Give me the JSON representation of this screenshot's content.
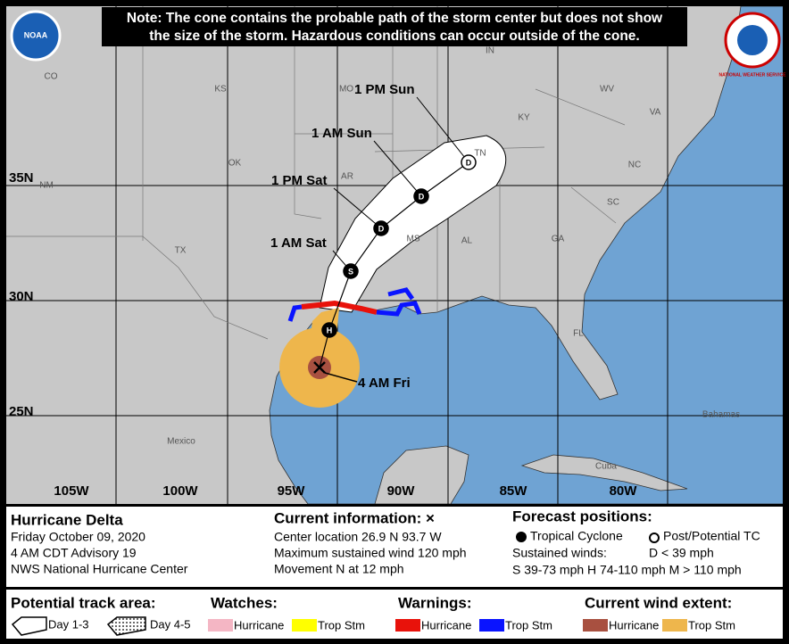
{
  "note": [
    "Note: The cone contains the probable path of the storm center but does not show",
    "the size of the storm. Hazardous conditions can occur outside of the cone."
  ],
  "logos": {
    "noaa": "NOAA",
    "nws": "NATIONAL WEATHER SERVICE"
  },
  "map": {
    "longitude_labels": [
      "105W",
      "100W",
      "95W",
      "90W",
      "85W",
      "80W"
    ],
    "latitude_labels": [
      "35N",
      "30N",
      "25N"
    ],
    "region_labels": [
      "CO",
      "KS",
      "MO",
      "IN",
      "WV",
      "KY",
      "VA",
      "OK",
      "TN",
      "NC",
      "AR",
      "SC",
      "NM",
      "TX",
      "MS",
      "AL",
      "GA",
      "FL",
      "Mexico",
      "Bahamas",
      "Cuba"
    ]
  },
  "track": {
    "current_label": "4 AM Fri",
    "points": [
      {
        "symbol": "H"
      },
      {
        "symbol": "S",
        "label": "1 AM Sat"
      },
      {
        "symbol": "D",
        "label": "1 PM Sat"
      },
      {
        "symbol": "D",
        "label": "1 AM Sun"
      },
      {
        "symbol": "D",
        "label": "1 PM Sun"
      }
    ]
  },
  "info": {
    "storm": {
      "title": "Hurricane Delta",
      "lines": [
        "Friday October 09, 2020",
        "4 AM CDT Advisory 19",
        "NWS National Hurricane Center"
      ]
    },
    "current": {
      "title": "Current information: ×",
      "lines": [
        "Center location 26.9 N 93.7 W",
        "Maximum sustained wind 120 mph",
        "Movement N at 12 mph"
      ]
    },
    "forecast": {
      "title": "Forecast positions:",
      "tropical": "Tropical Cyclone",
      "post": "Post/Potential TC",
      "winds_title": "Sustained winds:",
      "d": "D < 39 mph",
      "scale": "S 39-73 mph  H 74-110 mph  M > 110 mph"
    }
  },
  "legend": {
    "track": {
      "title": "Potential track area:",
      "day13": "Day 1-3",
      "day45": "Day 4-5"
    },
    "watches": {
      "title": "Watches:",
      "hurricane": "Hurricane",
      "trop": "Trop Stm"
    },
    "warnings": {
      "title": "Warnings:",
      "hurricane": "Hurricane",
      "trop": "Trop Stm"
    },
    "wind": {
      "title": "Current wind extent:",
      "hurricane": "Hurricane",
      "trop": "Trop Stm"
    }
  }
}
